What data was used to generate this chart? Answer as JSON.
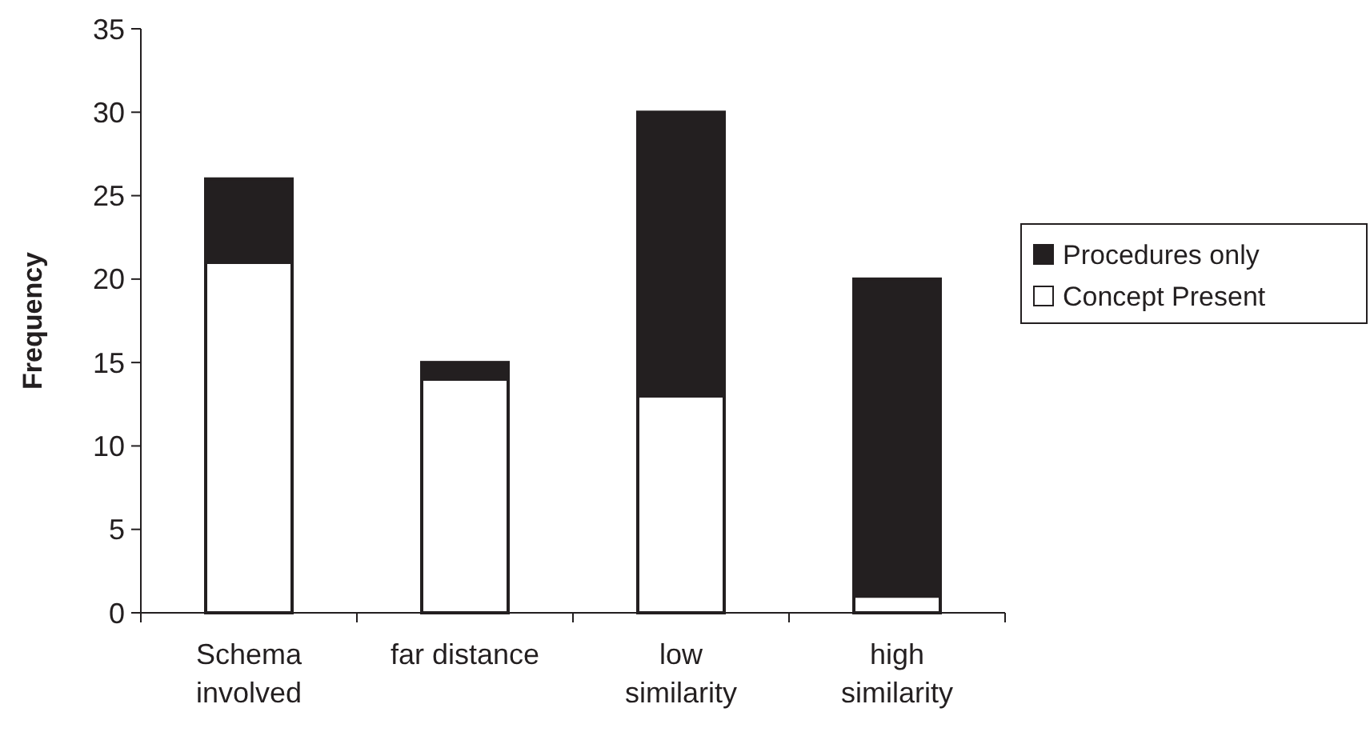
{
  "chart_data": {
    "type": "bar",
    "stacked": true,
    "ylabel": "Frequency",
    "categories": [
      "Schema involved",
      "far distance",
      "low similarity",
      "high similarity"
    ],
    "series": [
      {
        "name": "Concept Present",
        "color": "#ffffff",
        "values": [
          21,
          14,
          13,
          1
        ]
      },
      {
        "name": "Procedures only",
        "color": "#231f20",
        "values": [
          5,
          1,
          17,
          19
        ]
      }
    ],
    "ylim": [
      0,
      35
    ],
    "yticks": [
      0,
      5,
      10,
      15,
      20,
      25,
      30,
      35
    ],
    "legend": "right",
    "grid": false
  }
}
